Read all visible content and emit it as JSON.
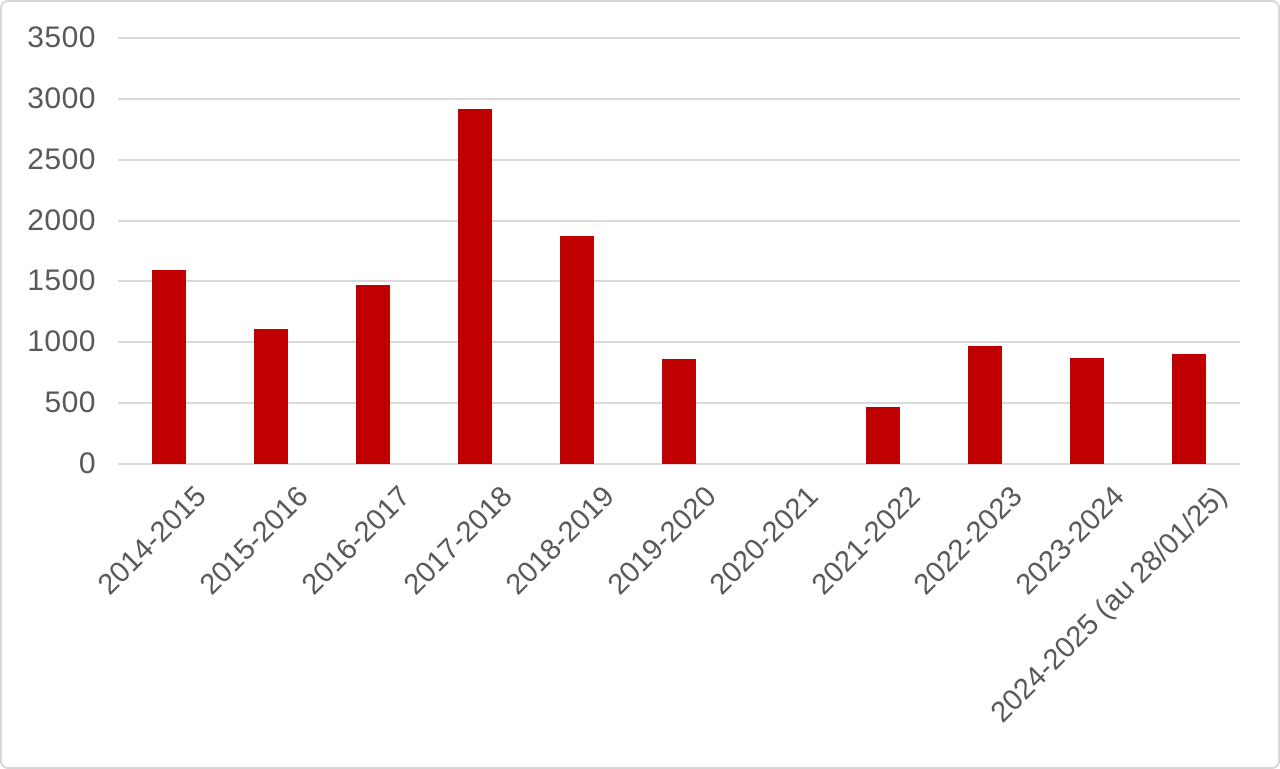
{
  "chart_data": {
    "type": "bar",
    "title": "",
    "xlabel": "",
    "ylabel": "",
    "categories": [
      "2014-2015",
      "2015-2016",
      "2016-2017",
      "2017-2018",
      "2018-2019",
      "2019-2020",
      "2020-2021",
      "2021-2022",
      "2022-2023",
      "2023-2024",
      "2024-2025 (au 28/01/25)"
    ],
    "values": [
      1590,
      1110,
      1470,
      2915,
      1870,
      860,
      0,
      470,
      970,
      870,
      900
    ],
    "ylim": [
      0,
      3500
    ],
    "yticks": [
      0,
      500,
      1000,
      1500,
      2000,
      2500,
      3000,
      3500
    ],
    "grid": true,
    "legend": false,
    "colors": {
      "bar": "#c00000",
      "gridline": "#d9d9d9",
      "tick_label": "#595959",
      "border": "#d6d6d6"
    }
  }
}
